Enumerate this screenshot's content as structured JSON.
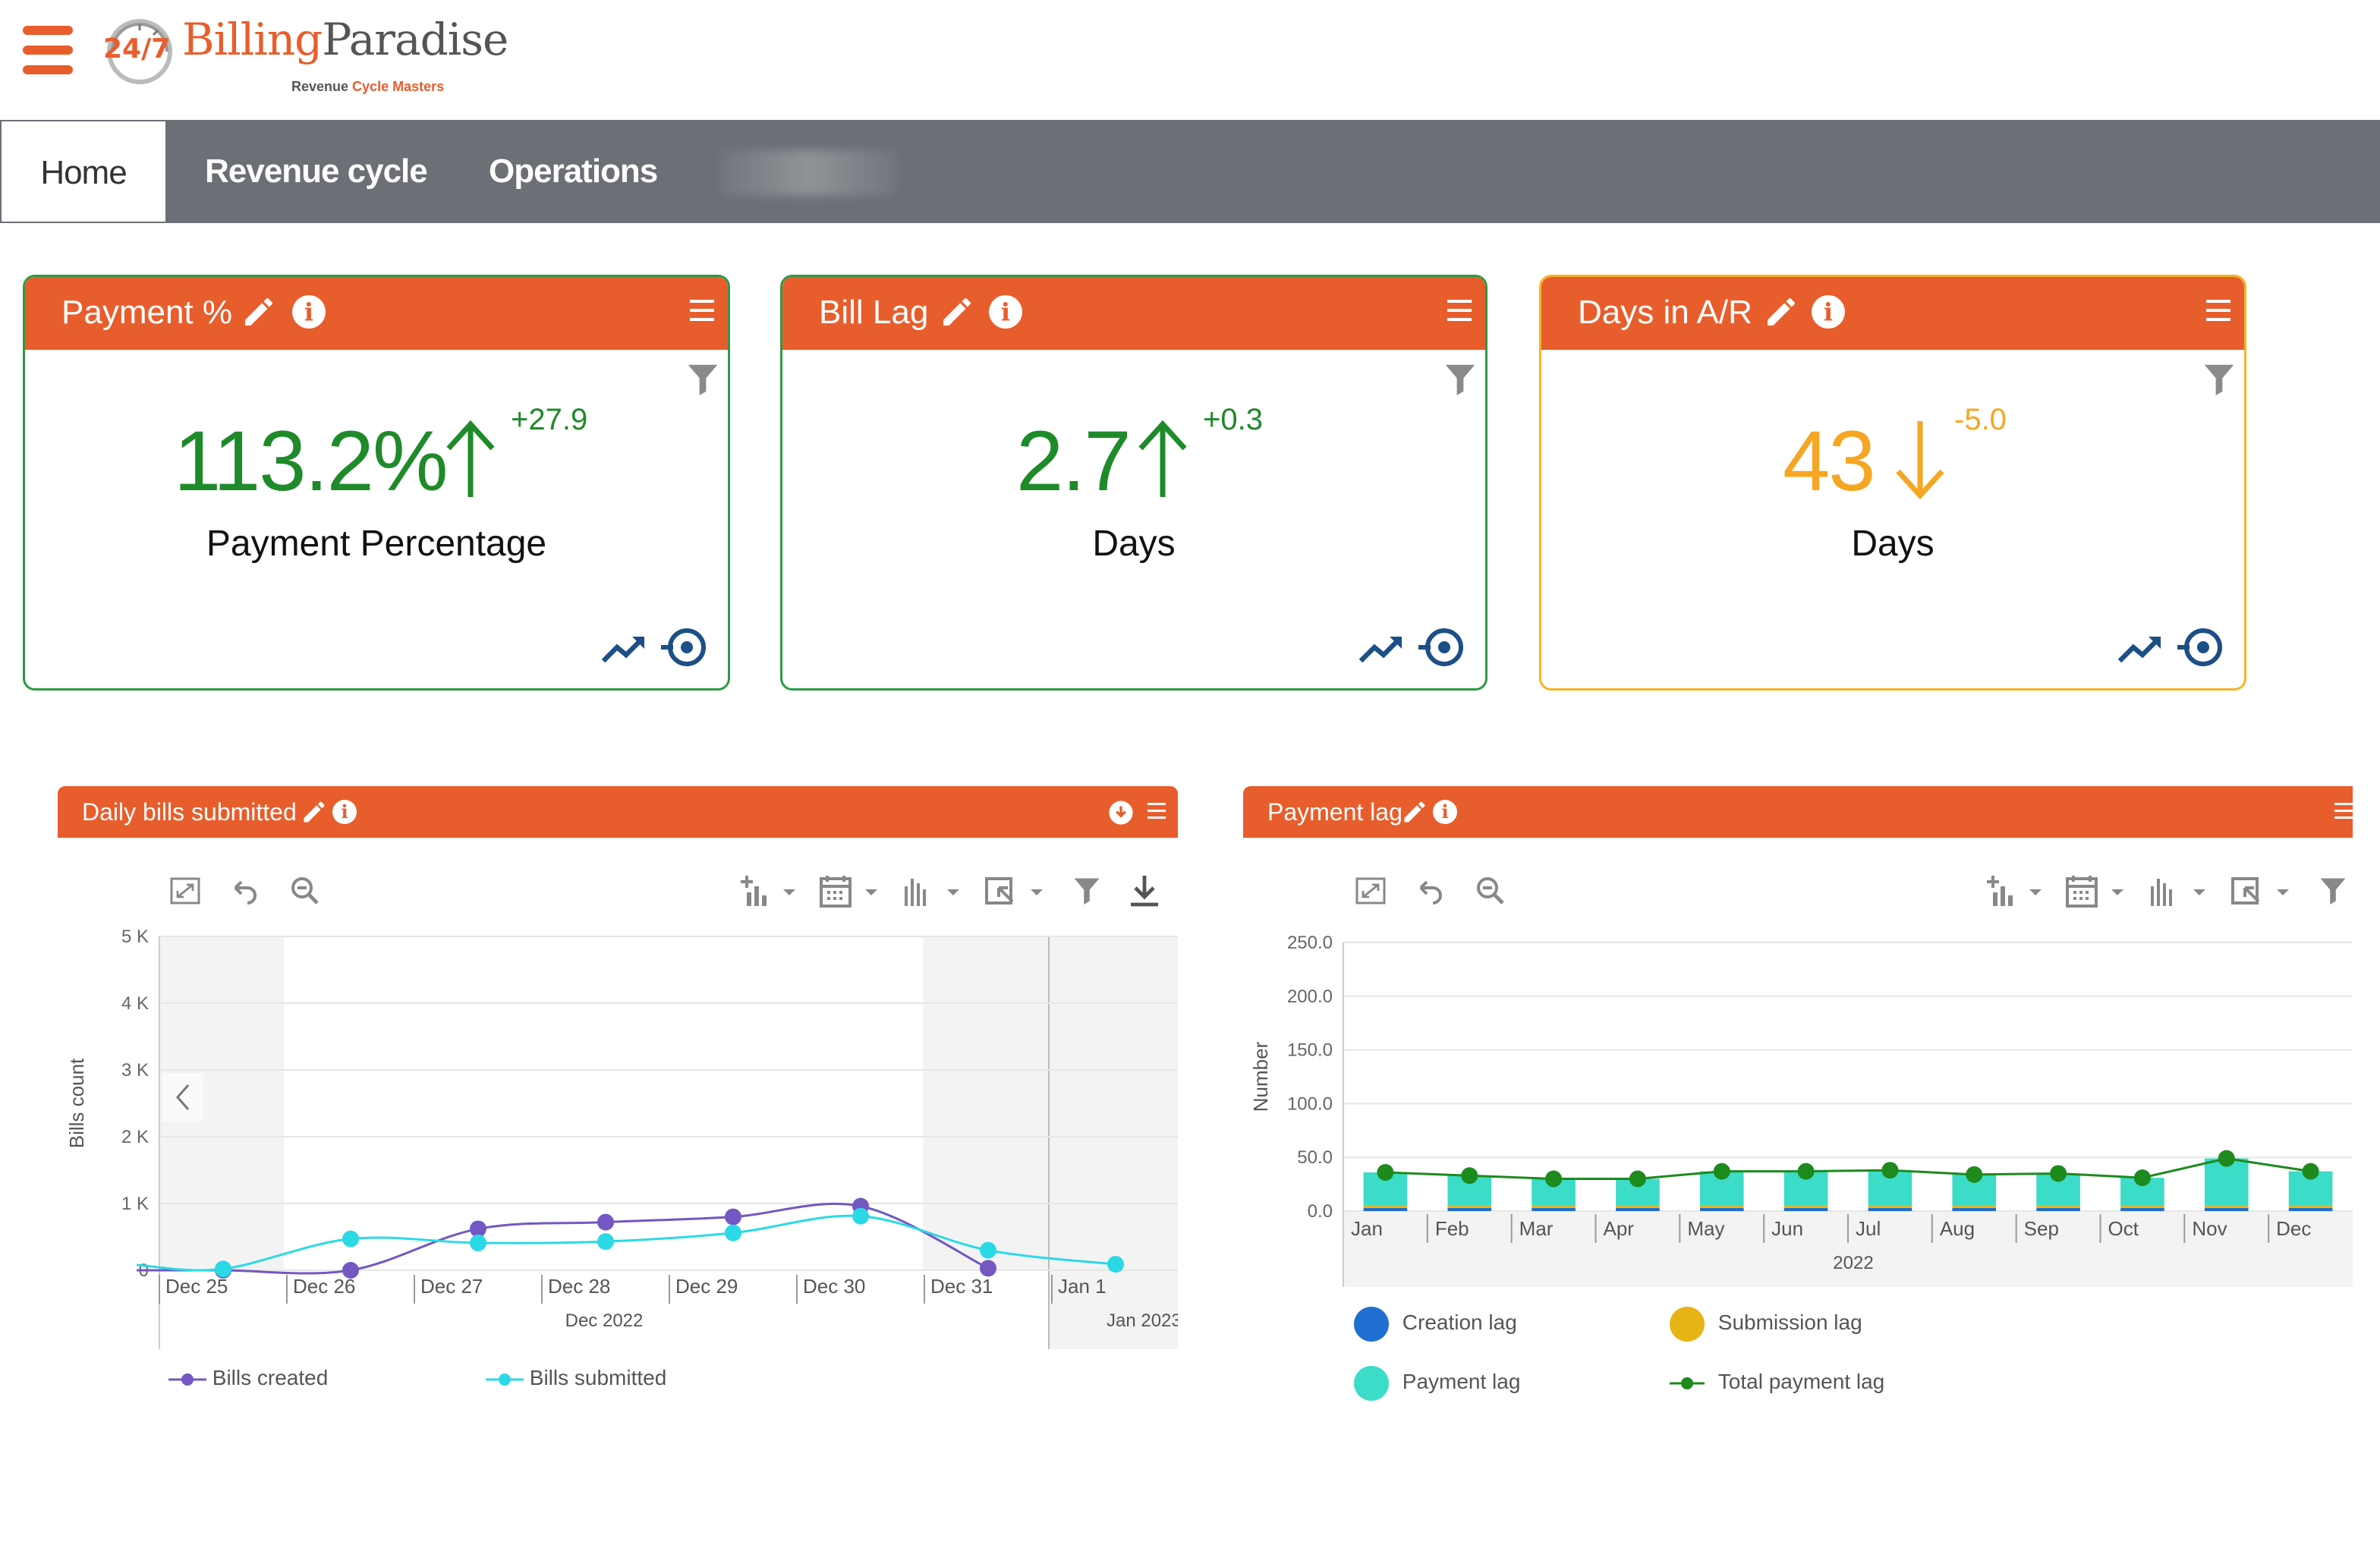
{
  "header": {
    "brand_part1": "Billing",
    "brand_part2": "Paradise",
    "tagline_part1": "Revenue ",
    "tagline_part2": "Cycle Masters",
    "logo_mark": "24/7"
  },
  "nav": {
    "tabs": [
      {
        "label": "Home",
        "active": true
      },
      {
        "label": "Revenue cycle"
      },
      {
        "label": "Operations"
      }
    ]
  },
  "kpis": [
    {
      "title": "Payment %",
      "value": "113.2%",
      "direction": "up",
      "delta": "+27.9",
      "label": "Payment Percentage",
      "color": "#1f8a2a"
    },
    {
      "title": "Bill Lag",
      "value": "2.7",
      "direction": "up",
      "delta": "+0.3",
      "label": "Days",
      "color": "#1f8a2a"
    },
    {
      "title": "Days in A/R",
      "value": "43",
      "direction": "down",
      "delta": "-5.0",
      "label": "Days",
      "color": "#f5a623"
    }
  ],
  "daily_chart": {
    "title": "Daily bills submitted",
    "legend": [
      "Bills created",
      "Bills submitted"
    ]
  },
  "lag_chart": {
    "title": "Payment lag",
    "legend": [
      "Creation lag",
      "Submission lag",
      "Payment lag",
      "Total payment lag"
    ]
  },
  "chart_data": [
    {
      "type": "line",
      "title": "Daily bills submitted",
      "xlabel": "Dec 2022",
      "xlabel2": "Jan 2023",
      "ylabel": "Bills count",
      "ylim": [
        0,
        5000
      ],
      "yticks": [
        "0",
        "1 K",
        "2 K",
        "3 K",
        "4 K",
        "5 K"
      ],
      "categories": [
        "Dec 25",
        "Dec 26",
        "Dec 27",
        "Dec 28",
        "Dec 29",
        "Dec 30",
        "Dec 31",
        "Jan 1"
      ],
      "series": [
        {
          "name": "Bills created",
          "color": "#7357c2",
          "values": [
            0,
            0,
            620,
            720,
            800,
            960,
            30,
            null
          ]
        },
        {
          "name": "Bills submitted",
          "color": "#2bd9e6",
          "values": [
            20,
            470,
            410,
            430,
            560,
            810,
            300,
            90
          ]
        }
      ],
      "legend_position": "bottom"
    },
    {
      "type": "bar",
      "title": "Payment lag",
      "xlabel": "2022",
      "ylabel": "Number",
      "ylim": [
        0,
        250
      ],
      "yticks": [
        "0.0",
        "50.0",
        "100.0",
        "150.0",
        "200.0",
        "250.0"
      ],
      "categories": [
        "Jan",
        "Feb",
        "Mar",
        "Apr",
        "May",
        "Jun",
        "Jul",
        "Aug",
        "Sep",
        "Oct",
        "Nov",
        "Dec"
      ],
      "series": [
        {
          "name": "Creation lag",
          "color": "#1f6fd0",
          "values": [
            3,
            3,
            3,
            3,
            3,
            3,
            3,
            3,
            3,
            3,
            3,
            3
          ]
        },
        {
          "name": "Submission lag",
          "color": "#e7b416",
          "values": [
            2,
            2,
            2,
            2,
            2,
            2,
            2,
            2,
            2,
            2,
            2,
            2
          ]
        },
        {
          "name": "Payment lag",
          "color": "#3bdcc8",
          "values": [
            31,
            28,
            25,
            25,
            32,
            32,
            33,
            29,
            30,
            26,
            44,
            32
          ]
        },
        {
          "name": "Total payment lag",
          "color": "#1d8a1d",
          "type": "line",
          "values": [
            36,
            33,
            30,
            30,
            37,
            37,
            38,
            34,
            35,
            31,
            49,
            37
          ]
        }
      ],
      "legend_position": "bottom"
    }
  ]
}
